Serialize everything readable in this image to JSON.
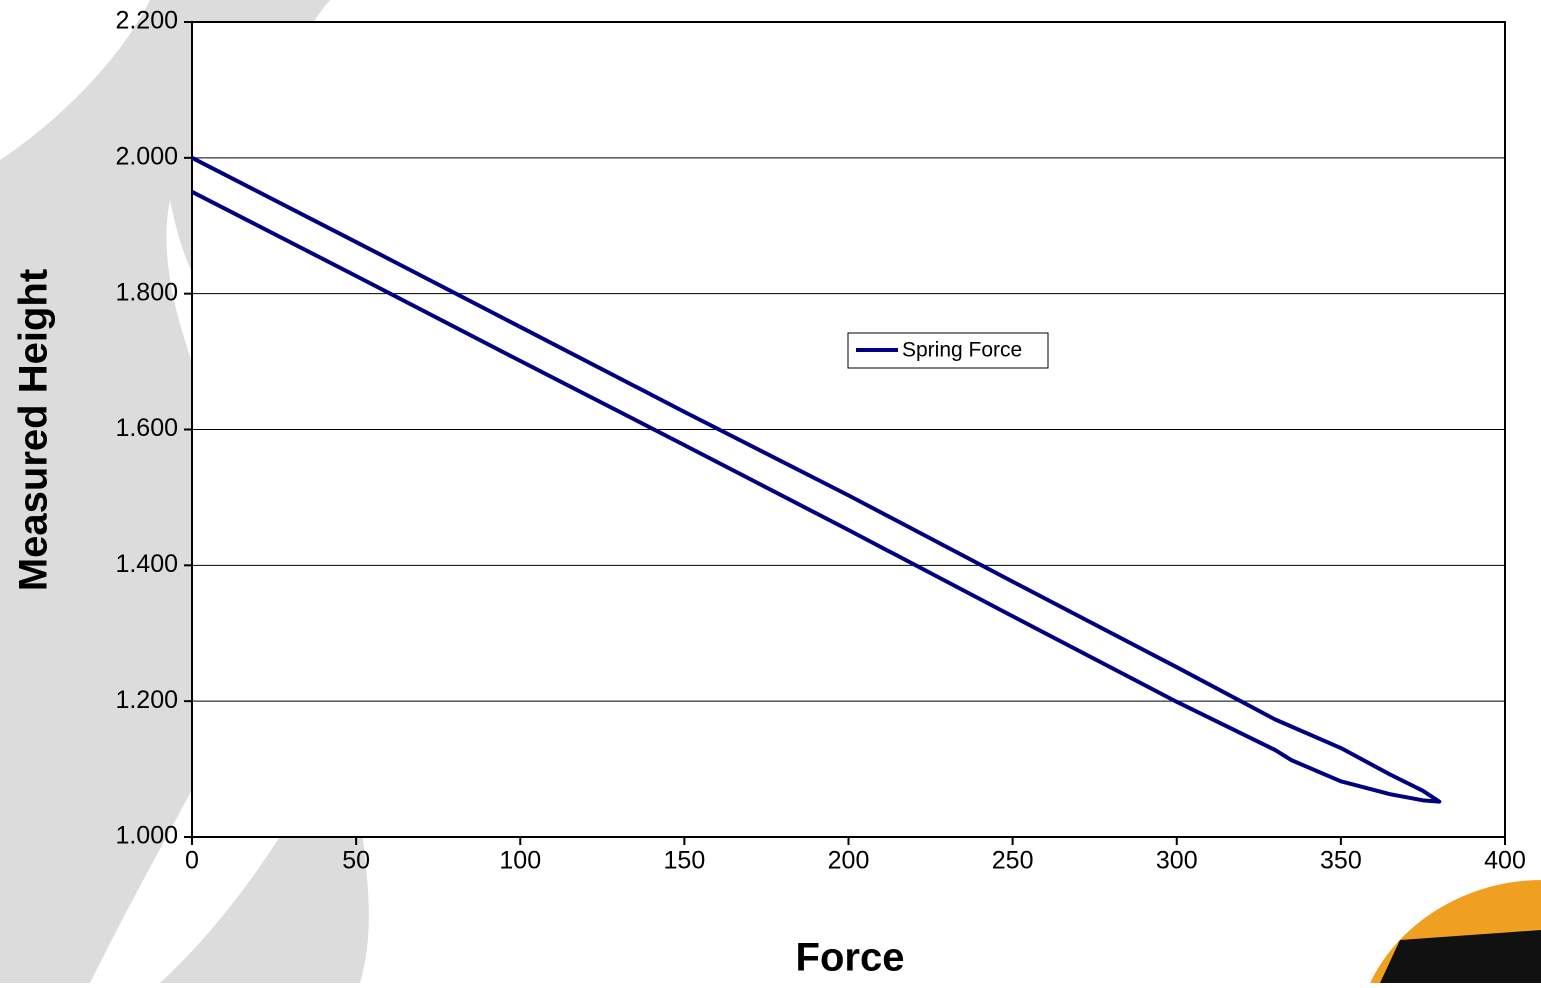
{
  "chart_data": {
    "type": "line",
    "x_label": "Force",
    "y_label": "Measured Height",
    "series": [
      {
        "name": "Spring Force",
        "color": "#000080",
        "x": [
          0,
          50,
          100,
          150,
          200,
          250,
          300,
          330,
          350,
          365,
          375,
          380,
          375,
          365,
          350,
          335,
          330,
          300,
          250,
          200,
          150,
          100,
          50,
          0
        ],
        "values": [
          2.0,
          1.876,
          1.751,
          1.626,
          1.503,
          1.376,
          1.25,
          1.173,
          1.131,
          1.092,
          1.068,
          1.052,
          1.054,
          1.063,
          1.082,
          1.113,
          1.128,
          1.199,
          1.325,
          1.452,
          1.577,
          1.701,
          1.826,
          1.95
        ]
      }
    ],
    "xlim": [
      0,
      400
    ],
    "xticks": [
      0,
      50,
      100,
      150,
      200,
      250,
      300,
      350,
      400
    ],
    "ylim": [
      1.0,
      2.2
    ],
    "yticks": [
      {
        "value": 1.0,
        "label": "1.000"
      },
      {
        "value": 1.2,
        "label": "1.200"
      },
      {
        "value": 1.4,
        "label": "1.400"
      },
      {
        "value": 1.6,
        "label": "1.600"
      },
      {
        "value": 1.8,
        "label": "1.800"
      },
      {
        "value": 2.0,
        "label": "2.000"
      },
      {
        "value": 2.2,
        "label": "2.200"
      }
    ],
    "grid": true,
    "legend": "center"
  }
}
